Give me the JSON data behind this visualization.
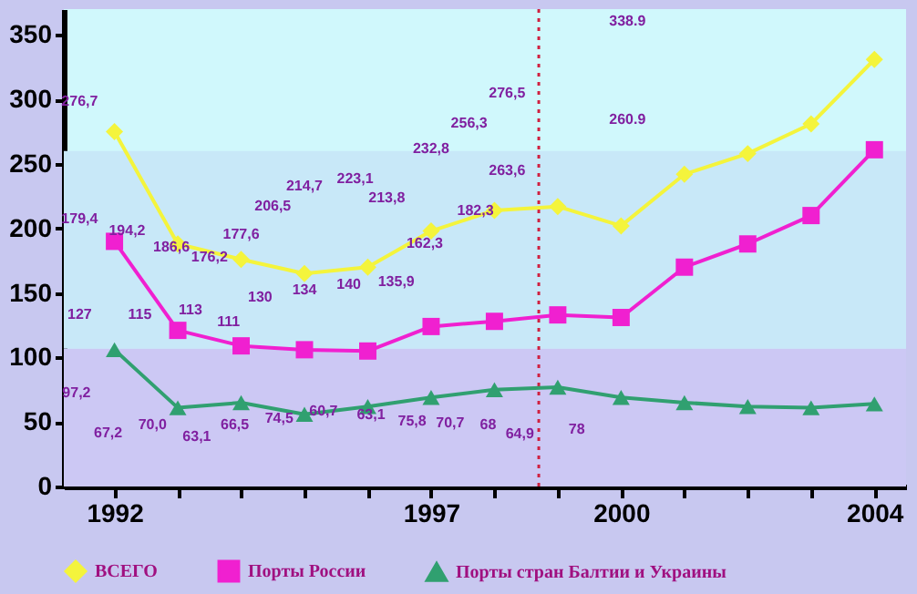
{
  "chart_data": {
    "type": "line",
    "x": [
      1992,
      1993,
      1994,
      1995,
      1996,
      1997,
      1998,
      1999,
      2000,
      2001,
      2002,
      2003,
      2004
    ],
    "xlim": [
      1991.2,
      2004.5
    ],
    "xticks": [
      1992,
      {
        "value": 1993,
        "label": null
      },
      {
        "value": 1994,
        "label": null
      },
      {
        "value": 1995,
        "label": null
      },
      {
        "value": 1996,
        "label": null
      },
      1997,
      {
        "value": 1998,
        "label": null
      },
      {
        "value": 1999,
        "label": null
      },
      2000,
      {
        "value": 2001,
        "label": null
      },
      {
        "value": 2002,
        "label": null
      },
      {
        "value": 2003,
        "label": null
      },
      2004
    ],
    "ylim": [
      0,
      370
    ],
    "yticks": [
      0,
      50,
      100,
      150,
      200,
      250,
      300,
      350
    ],
    "series": [
      {
        "name": "ВСЕГО",
        "color": "#f4f43c",
        "marker": "diamond",
        "values": [
          275,
          188,
          176,
          165,
          170,
          198,
          214,
          217,
          202,
          242,
          258,
          281,
          331
        ]
      },
      {
        "name": "Порты России",
        "color": "#f020d0",
        "marker": "square",
        "values": [
          190,
          121,
          109,
          106,
          105,
          124,
          128,
          133,
          131,
          170,
          188,
          210,
          261
        ]
      },
      {
        "name": "Порты стран Балтии и Украины",
        "color": "#30a070",
        "marker": "triangle",
        "values": [
          106,
          61,
          65,
          56,
          62,
          69,
          75,
          77,
          69,
          65,
          62,
          61,
          64
        ]
      }
    ],
    "bands": [
      {
        "axis": "y",
        "from": 0,
        "to": 107,
        "color": "#ccc8f4"
      },
      {
        "axis": "y",
        "from": 107,
        "to": 260,
        "color": "#c8e8f8"
      }
    ],
    "ref_lines": [
      {
        "axis": "x",
        "value": 1998.7,
        "color": "#d02040",
        "line_style": "dotted"
      }
    ],
    "legend": "bottom",
    "grid": false,
    "annotations": [
      "276,7",
      "179,4",
      "194,2",
      "186,6",
      "176,2",
      "177,6",
      "206,5",
      "214,7",
      "223,1",
      "213,8",
      "232,8",
      "256,3",
      "276,5",
      "263,6",
      "182,3",
      "162,3",
      "135,9",
      "140",
      "134",
      "130",
      "111",
      "113",
      "115",
      "127",
      "97,2",
      "67,2",
      "70,0",
      "63,1",
      "66,5",
      "74,5",
      "60,7",
      "63,1",
      "75,8",
      "70,7",
      "68",
      "64,9",
      "78",
      "338.9",
      "260.9"
    ]
  }
}
